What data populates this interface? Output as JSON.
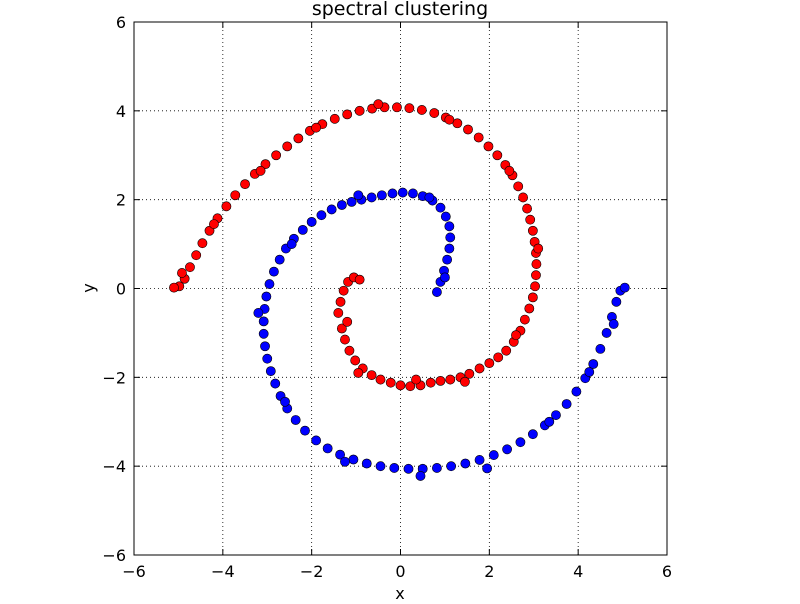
{
  "chart_data": {
    "type": "scatter",
    "title": "spectral clustering",
    "xlabel": "x",
    "ylabel": "y",
    "xlim": [
      -6,
      6
    ],
    "ylim": [
      -6,
      6
    ],
    "xticks": [
      -6,
      -4,
      -2,
      0,
      2,
      4,
      6
    ],
    "yticks": [
      -6,
      -4,
      -2,
      0,
      2,
      4,
      6
    ],
    "xtick_labels": [
      "−6",
      "−4",
      "−2",
      "0",
      "2",
      "4",
      "6"
    ],
    "ytick_labels": [
      "−6",
      "−4",
      "−2",
      "0",
      "2",
      "4",
      "6"
    ],
    "grid": true,
    "legend": "none",
    "series": [
      {
        "color": "#ff0000",
        "points": [
          [
            -1.4,
            -0.55
          ],
          [
            -1.35,
            -0.3
          ],
          [
            -1.28,
            -0.05
          ],
          [
            -1.18,
            0.15
          ],
          [
            -1.05,
            0.25
          ],
          [
            -0.92,
            0.2
          ],
          [
            -1.32,
            -0.9
          ],
          [
            -1.25,
            -1.15
          ],
          [
            -1.15,
            -1.4
          ],
          [
            -1.02,
            -1.62
          ],
          [
            -0.85,
            -1.8
          ],
          [
            -0.65,
            -1.95
          ],
          [
            -0.45,
            -2.05
          ],
          [
            -0.22,
            -2.12
          ],
          [
            0.0,
            -2.18
          ],
          [
            0.22,
            -2.2
          ],
          [
            0.45,
            -2.18
          ],
          [
            0.68,
            -2.12
          ],
          [
            0.9,
            -2.08
          ],
          [
            1.12,
            -2.05
          ],
          [
            1.35,
            -2.0
          ],
          [
            1.55,
            -1.92
          ],
          [
            1.78,
            -1.8
          ],
          [
            2.0,
            -1.68
          ],
          [
            2.2,
            -1.55
          ],
          [
            2.38,
            -1.4
          ],
          [
            2.55,
            -1.2
          ],
          [
            2.7,
            -0.95
          ],
          [
            2.8,
            -0.7
          ],
          [
            2.9,
            -0.45
          ],
          [
            2.98,
            -0.2
          ],
          [
            3.03,
            0.05
          ],
          [
            3.05,
            0.3
          ],
          [
            3.06,
            0.55
          ],
          [
            3.05,
            0.8
          ],
          [
            3.02,
            1.05
          ],
          [
            2.98,
            1.3
          ],
          [
            2.92,
            1.55
          ],
          [
            2.85,
            1.8
          ],
          [
            2.76,
            2.05
          ],
          [
            2.65,
            2.3
          ],
          [
            2.52,
            2.55
          ],
          [
            2.36,
            2.78
          ],
          [
            2.18,
            3.0
          ],
          [
            1.98,
            3.2
          ],
          [
            1.76,
            3.4
          ],
          [
            1.52,
            3.58
          ],
          [
            1.28,
            3.72
          ],
          [
            1.02,
            3.85
          ],
          [
            0.76,
            3.95
          ],
          [
            0.48,
            4.02
          ],
          [
            0.2,
            4.06
          ],
          [
            -0.08,
            4.08
          ],
          [
            -0.36,
            4.08
          ],
          [
            -0.64,
            4.05
          ],
          [
            -0.92,
            4.0
          ],
          [
            -1.2,
            3.92
          ],
          [
            -1.48,
            3.82
          ],
          [
            -1.76,
            3.7
          ],
          [
            -2.04,
            3.55
          ],
          [
            -2.3,
            3.38
          ],
          [
            -2.55,
            3.2
          ],
          [
            -2.8,
            3.0
          ],
          [
            -3.04,
            2.8
          ],
          [
            -3.28,
            2.58
          ],
          [
            -3.5,
            2.35
          ],
          [
            -3.72,
            2.1
          ],
          [
            -3.92,
            1.85
          ],
          [
            -4.12,
            1.58
          ],
          [
            -4.3,
            1.3
          ],
          [
            -4.46,
            1.02
          ],
          [
            -4.6,
            0.75
          ],
          [
            -4.74,
            0.48
          ],
          [
            -4.86,
            0.22
          ],
          [
            -4.98,
            0.05
          ],
          [
            -5.1,
            0.02
          ],
          [
            -1.2,
            -0.75
          ],
          [
            -0.95,
            -1.9
          ],
          [
            0.35,
            -2.05
          ],
          [
            1.45,
            -2.1
          ],
          [
            2.6,
            -1.05
          ],
          [
            3.1,
            0.9
          ],
          [
            2.45,
            2.65
          ],
          [
            1.1,
            3.8
          ],
          [
            -0.5,
            4.15
          ],
          [
            -1.9,
            3.62
          ],
          [
            -3.15,
            2.65
          ],
          [
            -4.2,
            1.45
          ],
          [
            -4.92,
            0.35
          ]
        ]
      },
      {
        "color": "#0000ff",
        "points": [
          [
            0.82,
            -0.08
          ],
          [
            0.9,
            0.15
          ],
          [
            0.98,
            0.4
          ],
          [
            1.05,
            0.65
          ],
          [
            1.1,
            0.9
          ],
          [
            1.12,
            1.15
          ],
          [
            1.1,
            1.4
          ],
          [
            1.02,
            1.62
          ],
          [
            0.9,
            1.82
          ],
          [
            0.72,
            1.98
          ],
          [
            0.5,
            2.08
          ],
          [
            0.28,
            2.14
          ],
          [
            0.05,
            2.16
          ],
          [
            -0.18,
            2.14
          ],
          [
            -0.42,
            2.1
          ],
          [
            -0.65,
            2.05
          ],
          [
            -0.88,
            2.0
          ],
          [
            -1.1,
            1.95
          ],
          [
            -1.32,
            1.88
          ],
          [
            -1.55,
            1.78
          ],
          [
            -1.78,
            1.65
          ],
          [
            -2.0,
            1.5
          ],
          [
            -2.2,
            1.32
          ],
          [
            -2.4,
            1.12
          ],
          [
            -2.58,
            0.9
          ],
          [
            -2.72,
            0.65
          ],
          [
            -2.85,
            0.38
          ],
          [
            -2.95,
            0.1
          ],
          [
            -3.02,
            -0.18
          ],
          [
            -3.06,
            -0.46
          ],
          [
            -3.08,
            -0.74
          ],
          [
            -3.08,
            -1.02
          ],
          [
            -3.05,
            -1.3
          ],
          [
            -3.0,
            -1.58
          ],
          [
            -2.92,
            -1.86
          ],
          [
            -2.82,
            -2.14
          ],
          [
            -2.7,
            -2.42
          ],
          [
            -2.55,
            -2.7
          ],
          [
            -2.36,
            -2.96
          ],
          [
            -2.15,
            -3.2
          ],
          [
            -1.9,
            -3.42
          ],
          [
            -1.64,
            -3.6
          ],
          [
            -1.36,
            -3.74
          ],
          [
            -1.06,
            -3.85
          ],
          [
            -0.76,
            -3.94
          ],
          [
            -0.45,
            -4.0
          ],
          [
            -0.14,
            -4.04
          ],
          [
            0.18,
            -4.06
          ],
          [
            0.5,
            -4.06
          ],
          [
            0.82,
            -4.04
          ],
          [
            1.14,
            -4.0
          ],
          [
            1.46,
            -3.94
          ],
          [
            1.78,
            -3.86
          ],
          [
            2.1,
            -3.75
          ],
          [
            2.4,
            -3.62
          ],
          [
            2.7,
            -3.46
          ],
          [
            2.98,
            -3.28
          ],
          [
            3.25,
            -3.08
          ],
          [
            3.5,
            -2.85
          ],
          [
            3.74,
            -2.6
          ],
          [
            3.96,
            -2.32
          ],
          [
            4.16,
            -2.02
          ],
          [
            4.34,
            -1.7
          ],
          [
            4.5,
            -1.36
          ],
          [
            4.64,
            -1.0
          ],
          [
            4.76,
            -0.64
          ],
          [
            4.86,
            -0.3
          ],
          [
            4.95,
            -0.05
          ],
          [
            5.05,
            0.02
          ],
          [
            1.0,
            0.25
          ],
          [
            0.65,
            2.05
          ],
          [
            -0.95,
            2.1
          ],
          [
            -2.45,
            1.0
          ],
          [
            -3.2,
            -0.55
          ],
          [
            -2.6,
            -2.55
          ],
          [
            -1.25,
            -3.9
          ],
          [
            0.45,
            -4.22
          ],
          [
            1.95,
            -4.05
          ],
          [
            3.35,
            -3.0
          ],
          [
            4.25,
            -1.88
          ],
          [
            4.8,
            -0.8
          ]
        ]
      }
    ]
  }
}
